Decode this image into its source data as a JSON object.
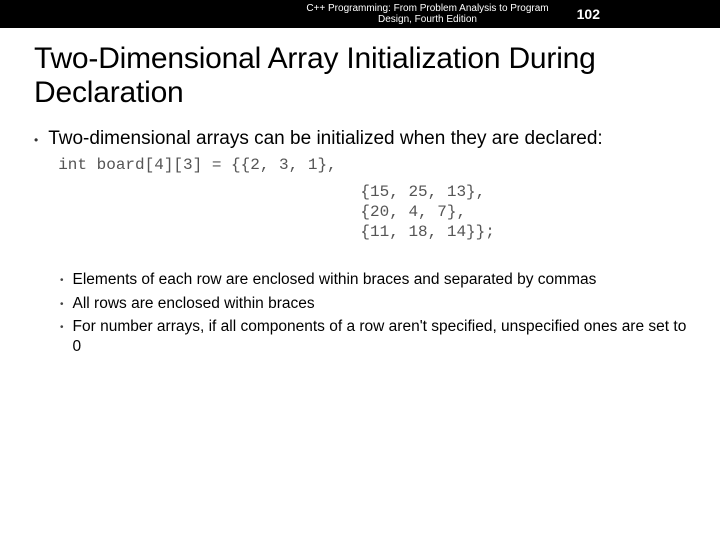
{
  "header": {
    "source_line1": "C++ Programming: From Problem Analysis to Program",
    "source_line2": "Design, Fourth Edition",
    "page_number": "102",
    "bg_color": "#000000",
    "text_color": "#ffffff"
  },
  "title": "Two-Dimensional Array Initialization During Declaration",
  "title_color": "#000000",
  "title_fontsize": 30,
  "main_bullet": {
    "text": "Two-dimensional arrays can be initialized when they are declared:",
    "fontsize": 19
  },
  "code": {
    "font_family": "Courier New",
    "fontsize": 16,
    "color": "#555555",
    "line1": "int board[4][3] = {{2, 3, 1},",
    "line2": "                   {15, 25, 13},",
    "line3": "                   {20, 4, 7},",
    "line4": "                   {11, 18, 14}};"
  },
  "sub_bullets": [
    "Elements of each row are enclosed within braces and separated by commas",
    "All rows are enclosed within braces",
    "For number arrays, if all components of a row aren't specified, unspecified ones are set to 0"
  ],
  "sub_bullet_fontsize": 15.5,
  "background_color": "#ffffff"
}
